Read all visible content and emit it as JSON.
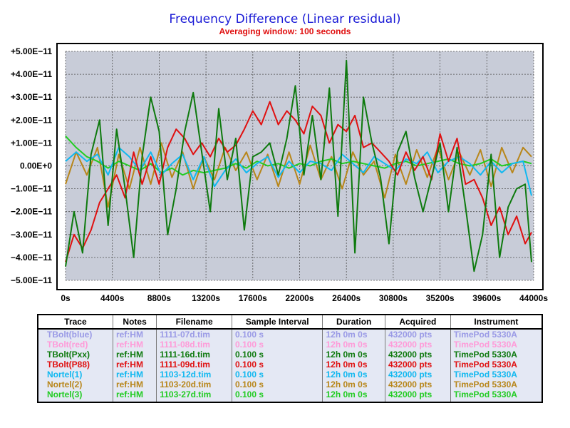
{
  "chart_data": {
    "type": "line",
    "title": "Frequency Difference  (Linear residual)",
    "subtitle": "Averaging window: 100 seconds",
    "xlabel": "",
    "ylabel": "",
    "xlim": [
      0,
      44000
    ],
    "ylim": [
      -5e-11,
      5e-11
    ],
    "x_ticks": [
      "0s",
      "4400s",
      "8800s",
      "13200s",
      "17600s",
      "22000s",
      "26400s",
      "30800s",
      "35200s",
      "39600s",
      "44000s"
    ],
    "y_ticks": [
      "+5.00E−11",
      "+4.00E−11",
      "+3.00E−11",
      "+2.00E−11",
      "+1.00E−11",
      "0.00E+0",
      "−1.00E−11",
      "−2.00E−11",
      "−3.00E−11",
      "−4.00E−11",
      "−5.00E−11"
    ],
    "grid": true,
    "background": "#c8ccd8",
    "series": [
      {
        "name": "TBolt(Pxx)",
        "color": "#0e7a0e",
        "x": [
          0,
          800,
          1600,
          2400,
          3200,
          4000,
          4800,
          5600,
          6400,
          7200,
          8000,
          8800,
          9600,
          10400,
          11200,
          12000,
          12800,
          13600,
          14400,
          15200,
          16000,
          16800,
          17600,
          18400,
          19200,
          20000,
          20800,
          21600,
          22400,
          23200,
          24000,
          24800,
          25600,
          26400,
          27200,
          28000,
          28800,
          29600,
          30400,
          31200,
          32000,
          32800,
          33600,
          34400,
          35200,
          36000,
          36800,
          37600,
          38400,
          39200,
          40000,
          40800,
          41600,
          42400,
          43200,
          43800
        ],
        "y": [
          -4.4e-11,
          -2e-11,
          -3.8e-11,
          5e-12,
          2e-11,
          -2.6e-11,
          1.6e-11,
          -1e-11,
          -4e-11,
          4e-12,
          3e-11,
          1.5e-11,
          -3e-11,
          -1e-11,
          1.5e-11,
          3.2e-11,
          6e-12,
          -2e-11,
          2.5e-11,
          -6e-12,
          1.2e-11,
          -2.8e-11,
          4e-12,
          6e-12,
          1e-11,
          -4e-12,
          1.2e-11,
          3.5e-11,
          -4e-12,
          2.2e-11,
          -6e-12,
          3.4e-11,
          -2.2e-11,
          4.6e-11,
          -3.8e-11,
          3e-11,
          1e-11,
          -5e-12,
          -3.4e-11,
          6e-12,
          1.5e-11,
          -5e-12,
          -2e-11,
          -5e-12,
          1e-11,
          -2e-11,
          8e-12,
          -1.8e-11,
          -4.6e-11,
          -3e-11,
          5e-12,
          -4e-11,
          -1.8e-11,
          -1e-11,
          -8e-12,
          -4.2e-11
        ]
      },
      {
        "name": "TBolt(P88)",
        "color": "#e01010",
        "x": [
          0,
          800,
          1600,
          2400,
          3200,
          4000,
          4800,
          5600,
          6400,
          7200,
          8000,
          8800,
          9600,
          10400,
          11200,
          12000,
          12800,
          13600,
          14400,
          15200,
          16000,
          16800,
          17600,
          18400,
          19200,
          20000,
          20800,
          21600,
          22400,
          23200,
          24000,
          24800,
          25600,
          26400,
          27200,
          28000,
          28800,
          29600,
          30400,
          31200,
          32000,
          32800,
          33600,
          34400,
          35200,
          36000,
          36800,
          37600,
          38400,
          39200,
          40000,
          40800,
          41600,
          42400,
          43200,
          43800
        ],
        "y": [
          -4.2e-11,
          -3e-11,
          -3.6e-11,
          -2.8e-11,
          -1.6e-11,
          -1e-11,
          -4e-12,
          -1.4e-11,
          6e-12,
          -8e-12,
          4e-12,
          -8e-12,
          8e-12,
          1.6e-11,
          1.2e-11,
          5e-12,
          1e-11,
          4e-12,
          1.2e-11,
          6e-12,
          9e-12,
          1.6e-11,
          2.4e-11,
          1.8e-11,
          2.8e-11,
          1.8e-11,
          2.4e-11,
          2e-11,
          1.4e-11,
          2.6e-11,
          2.2e-11,
          1e-11,
          1.8e-11,
          1.5e-11,
          2.2e-11,
          8e-12,
          1e-11,
          6e-12,
          2e-12,
          -4e-12,
          6e-12,
          -2e-12,
          4e-12,
          -6e-12,
          1.4e-11,
          2e-12,
          1.2e-11,
          -8e-12,
          -6e-12,
          -1.4e-11,
          -2.6e-11,
          -1.8e-11,
          -3e-11,
          -2.2e-11,
          -3.4e-11,
          -2.9e-11
        ]
      },
      {
        "name": "Nortel(1)",
        "color": "#10b8f0",
        "x": [
          0,
          1000,
          2000,
          3000,
          4000,
          5000,
          6000,
          7000,
          8000,
          9000,
          10000,
          11000,
          12000,
          13000,
          14000,
          15000,
          16000,
          17000,
          18000,
          19000,
          20000,
          21000,
          22000,
          23000,
          24000,
          25000,
          26000,
          27000,
          28000,
          29000,
          30000,
          31000,
          32000,
          33000,
          34000,
          35000,
          36000,
          37000,
          38000,
          39000,
          40000,
          41000,
          42000,
          43000,
          43800
        ],
        "y": [
          2e-12,
          6e-12,
          2e-12,
          5e-12,
          -4e-12,
          8e-12,
          4e-12,
          -2e-12,
          6e-12,
          -4e-12,
          1e-12,
          5e-12,
          -6e-12,
          4e-12,
          -9e-12,
          -2e-12,
          3e-12,
          -3e-12,
          1e-12,
          4e-12,
          -5e-12,
          2e-12,
          -3e-12,
          2e-12,
          1e-12,
          -2e-12,
          5e-12,
          1e-12,
          -3e-12,
          4e-12,
          1e-12,
          -2e-12,
          3e-12,
          1e-12,
          6e-12,
          -3e-12,
          2e-12,
          4e-12,
          1e-12,
          -4e-12,
          2e-12,
          -3e-12,
          1e-12,
          2e-12,
          -1.3e-11
        ]
      },
      {
        "name": "Nortel(2)",
        "color": "#b8861a",
        "x": [
          0,
          1000,
          2000,
          3000,
          4000,
          5000,
          6000,
          7000,
          8000,
          9000,
          10000,
          11000,
          12000,
          13000,
          14000,
          15000,
          16000,
          17000,
          18000,
          19000,
          20000,
          21000,
          22000,
          23000,
          24000,
          25000,
          26000,
          27000,
          28000,
          29000,
          30000,
          31000,
          32000,
          33000,
          34000,
          35000,
          36000,
          37000,
          38000,
          39000,
          40000,
          41000,
          42000,
          43000,
          43800
        ],
        "y": [
          -8e-12,
          6e-12,
          -4e-12,
          8e-12,
          -1.8e-11,
          5e-12,
          -1e-11,
          8e-12,
          -8e-12,
          1e-11,
          -5e-12,
          6e-12,
          -1e-11,
          4e-12,
          -6e-12,
          8e-12,
          -2e-12,
          6e-12,
          -6e-12,
          5e-12,
          -9e-12,
          6e-12,
          -8e-12,
          9e-12,
          -6e-12,
          4e-12,
          -1e-11,
          6e-12,
          -4e-12,
          2e-12,
          -1.4e-11,
          5e-12,
          -8e-12,
          7e-12,
          -5e-12,
          8e-12,
          -6e-12,
          6e-12,
          -4e-12,
          7e-12,
          -9e-12,
          8e-12,
          -3e-12,
          8e-12,
          4e-12
        ]
      },
      {
        "name": "Nortel(3)",
        "color": "#22cc22",
        "x": [
          0,
          1000,
          2000,
          3000,
          4000,
          5000,
          6000,
          7000,
          8000,
          9000,
          10000,
          11000,
          12000,
          13000,
          14000,
          15000,
          16000,
          17000,
          18000,
          19000,
          20000,
          21000,
          22000,
          23000,
          24000,
          25000,
          26000,
          27000,
          28000,
          29000,
          30000,
          31000,
          32000,
          33000,
          34000,
          35000,
          36000,
          37000,
          38000,
          39000,
          40000,
          41000,
          42000,
          43000,
          43800
        ],
        "y": [
          1.3e-11,
          8e-12,
          4e-12,
          2e-12,
          -1e-12,
          2e-12,
          0.0,
          -2e-12,
          1e-12,
          -3e-12,
          -1e-12,
          -4e-12,
          -2e-12,
          -3e-12,
          -2e-12,
          -1e-12,
          1e-12,
          -1e-12,
          2e-12,
          0.0,
          1e-12,
          -1e-12,
          1e-12,
          0.0,
          2e-12,
          3e-12,
          1e-12,
          2e-12,
          1e-12,
          0.0,
          -1e-12,
          1e-12,
          2e-12,
          0.0,
          1e-12,
          2e-12,
          3e-12,
          1e-12,
          0.0,
          1e-12,
          3e-12,
          0.0,
          1e-12,
          2e-12,
          1e-12
        ]
      }
    ]
  },
  "legend": {
    "headers": [
      "Trace",
      "Notes",
      "Filename",
      "Sample Interval",
      "Duration",
      "Acquired",
      "Instrument"
    ],
    "rows": [
      {
        "color": "#9a9ae6",
        "cells": [
          "TBolt(blue)",
          "ref:HM",
          "1111-07d.tim",
          "0.100 s",
          "12h 0m 0s",
          "432000 pts",
          "TimePod 5330A"
        ]
      },
      {
        "color": "#ff9ad8",
        "cells": [
          "TBolt(red)",
          "ref:HM",
          "1111-08d.tim",
          "0.100 s",
          "12h 0m 0s",
          "432000 pts",
          "TimePod 5330A"
        ]
      },
      {
        "color": "#0e7a0e",
        "cells": [
          "TBolt(Pxx)",
          "ref:HM",
          "1111-16d.tim",
          "0.100 s",
          "12h 0m 0s",
          "432000 pts",
          "TimePod 5330A"
        ]
      },
      {
        "color": "#e01010",
        "cells": [
          "TBolt(P88)",
          "ref:HM",
          "1111-09d.tim",
          "0.100 s",
          "12h 0m 0s",
          "432000 pts",
          "TimePod 5330A"
        ]
      },
      {
        "color": "#10b8f0",
        "cells": [
          "Nortel(1)",
          "ref:HM",
          "1103-12d.tim",
          "0.100 s",
          "12h 0m 0s",
          "432000 pts",
          "TimePod 5330A"
        ]
      },
      {
        "color": "#b8861a",
        "cells": [
          "Nortel(2)",
          "ref:HM",
          "1103-20d.tim",
          "0.100 s",
          "12h 0m 0s",
          "432000 pts",
          "TimePod 5330A"
        ]
      },
      {
        "color": "#22cc22",
        "cells": [
          "Nortel(3)",
          "ref:HM",
          "1103-27d.tim",
          "0.100 s",
          "12h 0m 0s",
          "432000 pts",
          "TimePod 5330A"
        ]
      }
    ]
  },
  "colors": {
    "title": "#1a1ad6",
    "subtitle": "#e01010",
    "zero_label": "#1a1ad6"
  }
}
